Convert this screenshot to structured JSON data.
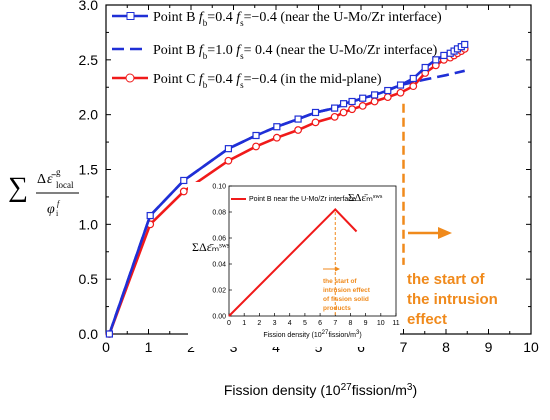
{
  "colors": {
    "blue": "#1f2fd6",
    "red": "#f01a1a",
    "orange": "#f08a1c",
    "axis": "#000000"
  },
  "ylabel_main": "∑ Δε̄ᵍ_local / φᵢᶠ",
  "intrusion_annotation_line1": "the start of",
  "intrusion_annotation_line2": "the intrusion",
  "intrusion_annotation_line3": "effect",
  "chart_data": [
    {
      "type": "line",
      "xlabel": "Fission density (10",
      "xlabel_sup": "27",
      "xlabel_tail": "fission/m",
      "xlabel_sup2": "3",
      "xlabel_close": ")",
      "xlim": [
        0,
        10
      ],
      "ylim": [
        0,
        3.0
      ],
      "xticks": [
        "0",
        "1",
        "2",
        "3",
        "4",
        "5",
        "6",
        "7",
        "8",
        "9",
        "10"
      ],
      "yticks": [
        "0.0",
        "0.5",
        "1.0",
        "1.5",
        "2.0",
        "2.5",
        "3.0"
      ],
      "intrusion_x": 7.0,
      "legend": [
        "Point B f_b=0.4 f_s=−0.4 (near the U-Mo/Zr interface)",
        "Point B f_b=1.0 f_s=  0.4 (near the U-Mo/Zr interface)",
        "Point C f_b=0.4 f_s=−0.4 (in the mid-plane)"
      ],
      "legend_placement": "top-left",
      "series": [
        {
          "name": "Point B f_b=0.4 f_s=−0.4 (near the U-Mo/Zr interface)",
          "style": "solid-square",
          "x": [
            0.08,
            1.04,
            1.83,
            2.88,
            3.53,
            4.02,
            4.52,
            4.93,
            5.38,
            5.59,
            5.79,
            6.04,
            6.32,
            6.63,
            6.93,
            7.23,
            7.51,
            7.76,
            7.95,
            8.1,
            8.19,
            8.27,
            8.36,
            8.44
          ],
          "y": [
            0.0,
            1.08,
            1.4,
            1.69,
            1.81,
            1.89,
            1.96,
            2.02,
            2.06,
            2.1,
            2.12,
            2.15,
            2.18,
            2.22,
            2.27,
            2.33,
            2.43,
            2.5,
            2.54,
            2.56,
            2.58,
            2.6,
            2.62,
            2.64
          ]
        },
        {
          "name": "Point B f_b=1.0 f_s=  0.4 (near the U-Mo/Zr interface)",
          "style": "dashed",
          "x": [
            0.08,
            1.04,
            1.83,
            2.88,
            3.53,
            4.02,
            4.52,
            4.93,
            5.38,
            5.79,
            6.32,
            6.93,
            7.5,
            8.0,
            8.44
          ],
          "y": [
            0.0,
            1.08,
            1.4,
            1.69,
            1.81,
            1.89,
            1.96,
            2.02,
            2.06,
            2.12,
            2.18,
            2.27,
            2.32,
            2.36,
            2.4
          ]
        },
        {
          "name": "Point C f_b=0.4 f_s=−0.4 (in the mid-plane)",
          "style": "solid-circle",
          "x": [
            0.08,
            1.04,
            1.83,
            2.88,
            3.53,
            4.02,
            4.52,
            4.93,
            5.38,
            5.59,
            5.79,
            6.04,
            6.32,
            6.63,
            6.93,
            7.23,
            7.51,
            7.76,
            7.95,
            8.1,
            8.19,
            8.27,
            8.36,
            8.44
          ],
          "y": [
            0.0,
            1.0,
            1.3,
            1.58,
            1.71,
            1.79,
            1.86,
            1.93,
            1.98,
            2.02,
            2.05,
            2.08,
            2.12,
            2.16,
            2.2,
            2.26,
            2.38,
            2.45,
            2.5,
            2.52,
            2.54,
            2.56,
            2.58,
            2.6
          ]
        }
      ]
    },
    {
      "type": "line",
      "xlabel": "Fission density (10",
      "xlabel_sup": "27",
      "xlabel_tail": "fission/m",
      "xlabel_sup2": "3",
      "xlabel_close": ")",
      "ylabel": "ΣΔε̄ₘˢʷˢ",
      "xlim": [
        0,
        11
      ],
      "ylim": [
        0,
        0.1
      ],
      "xticks": [
        "0",
        "1",
        "2",
        "3",
        "4",
        "5",
        "6",
        "7",
        "8",
        "9",
        "10",
        "11"
      ],
      "yticks": [
        "0.00",
        "0.02",
        "0.04",
        "0.06",
        "0.08",
        "0.10"
      ],
      "intrusion_x": 7.0,
      "legend": [
        "Point B near the U-Mo/Zr interface"
      ],
      "legend_symbol": "ΣΔε̄ₘˢʷˢ",
      "annotation": [
        "the start of",
        "intrusion effect",
        "of fission solid",
        "products"
      ],
      "series": [
        {
          "name": "Point B near the U-Mo/Zr interface",
          "x": [
            0,
            7.0,
            8.4
          ],
          "y": [
            0.0,
            0.082,
            0.065
          ]
        }
      ]
    }
  ]
}
